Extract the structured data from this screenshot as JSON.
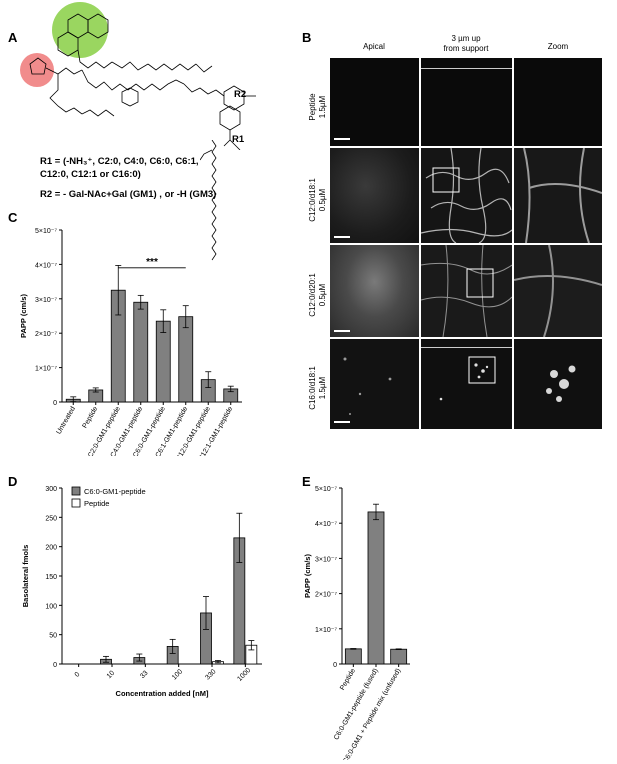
{
  "panels": {
    "A": "A",
    "B": "B",
    "C": "C",
    "D": "D",
    "E": "E"
  },
  "panelA": {
    "r2_label": "R2",
    "r1_label": "R1",
    "r1_definition_line1": "R1 = (-NH₃⁺,  C2:0, C4:0, C6:0, C6:1,",
    "r1_definition_line2": "C12:0, C12:1 or C16:0)",
    "r2_definition": "R2 = - Gal-NAc+Gal (GM1) , or  -H (GM3)",
    "colors": {
      "green_circle": "#8fd14f",
      "red_circle": "#f08080"
    }
  },
  "panelB": {
    "columns": [
      "Apical",
      "3 µm up",
      "from support",
      "Zoom"
    ],
    "rows": [
      {
        "name": "Peptide",
        "conc": "1.5µM"
      },
      {
        "name": "C12:0/d18:1",
        "conc": "0.5µM"
      },
      {
        "name": "C12:0/d20:1",
        "conc": "0.5µM"
      },
      {
        "name": "C16:0/d18:1",
        "conc": "1.5µM"
      }
    ]
  },
  "chart_data": [
    {
      "panel": "C",
      "type": "bar",
      "ylabel": "PAPP (cm/s)",
      "categories": [
        "Untreated",
        "Peptide",
        "C2:0-GM1-peptide",
        "C4:0-GM1-peptide",
        "C6:0-GM1-peptide",
        "C6:1-GM1-peptide",
        "C12:0-GM1-peptide",
        "C12:1-GM1-peptide"
      ],
      "values": [
        8e-09,
        3.5e-08,
        3.25e-07,
        2.9e-07,
        2.35e-07,
        2.48e-07,
        6.5e-08,
        3.8e-08
      ],
      "errors": [
        7e-09,
        6e-09,
        7.2e-08,
        2e-08,
        3.3e-08,
        3.2e-08,
        2.3e-08,
        8e-09
      ],
      "ylim": [
        0,
        5e-07
      ],
      "yticks": [
        "0",
        "1×10⁻⁷",
        "2×10⁻⁷",
        "3×10⁻⁷",
        "4×10⁻⁷",
        "5×10⁻⁷"
      ],
      "significance": "***"
    },
    {
      "panel": "D",
      "type": "bar",
      "ylabel": "Basolateral fmols",
      "xlabel": "Concentration added  [nM]",
      "categories": [
        "0",
        "10",
        "33",
        "100",
        "330",
        "1000"
      ],
      "series": [
        {
          "name": "C6:0-GM1-peptide",
          "values": [
            0,
            8,
            11,
            30,
            87,
            215
          ],
          "errors": [
            0,
            5,
            6,
            12,
            28,
            42
          ],
          "color": "#808080"
        },
        {
          "name": "Peptide",
          "values": [
            0,
            0,
            0,
            0,
            4,
            32
          ],
          "errors": [
            0,
            0,
            0,
            0,
            2,
            8
          ],
          "color": "#ffffff"
        }
      ],
      "ylim": [
        0,
        300
      ],
      "yticks": [
        "0",
        "50",
        "100",
        "150",
        "200",
        "250",
        "300"
      ]
    },
    {
      "panel": "E",
      "type": "bar",
      "ylabel": "PAPP (cm/s)",
      "categories": [
        "Peptide",
        "C6:0-GM1-peptide (fused)",
        "C6:0-GM1 + Peptide mix (unfused)"
      ],
      "values": [
        4.3e-08,
        4.32e-07,
        4.2e-08
      ],
      "errors": [
        1e-09,
        2.2e-08,
        1e-09
      ],
      "ylim": [
        0,
        5e-07
      ],
      "yticks": [
        "0",
        "1×10⁻⁷",
        "2×10⁻⁷",
        "3×10⁻⁷",
        "4×10⁻⁷",
        "5×10⁻⁷"
      ]
    }
  ]
}
